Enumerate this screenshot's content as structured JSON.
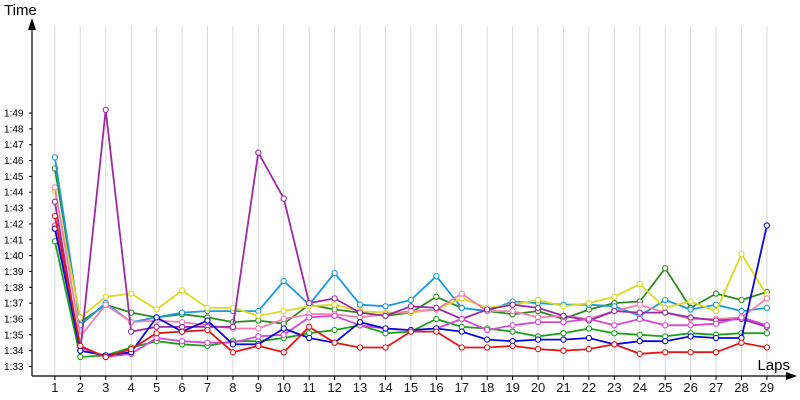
{
  "chart_data": {
    "type": "line",
    "title": "",
    "xlabel": "Laps",
    "ylabel": "Time",
    "x": [
      1,
      2,
      3,
      4,
      5,
      6,
      7,
      8,
      9,
      10,
      11,
      12,
      13,
      14,
      15,
      16,
      17,
      18,
      19,
      20,
      21,
      22,
      23,
      24,
      25,
      26,
      27,
      28,
      29
    ],
    "x_tick_labels": [
      "1",
      "2",
      "3",
      "4",
      "5",
      "6",
      "7",
      "8",
      "9",
      "10",
      "11",
      "12",
      "13",
      "14",
      "15",
      "16",
      "17",
      "18",
      "19",
      "20",
      "21",
      "22",
      "23",
      "24",
      "25",
      "26",
      "27",
      "28",
      "29"
    ],
    "xlim": [
      0.1,
      29.2
    ],
    "ylim": [
      92.4,
      115.0
    ],
    "y_ticks": [
      93,
      94,
      95,
      96,
      97,
      98,
      99,
      100,
      101,
      102,
      103,
      104,
      105,
      106,
      107,
      108,
      109
    ],
    "y_tick_labels": [
      "1:33",
      "1:34",
      "1:35",
      "1:36",
      "1:37",
      "1:38",
      "1:39",
      "1:40",
      "1:41",
      "1:42",
      "1:43",
      "1:44",
      "1:45",
      "1:46",
      "1:47",
      "1:48",
      "1:49"
    ],
    "grid": "vertical",
    "legend": "none",
    "axis_color": "#000000",
    "grid_color": "#d9d9d9",
    "series": [
      {
        "color": "#1aa31a",
        "values": [
          100.9,
          93.6,
          93.7,
          94.2,
          94.6,
          94.4,
          94.3,
          94.6,
          94.6,
          94.8,
          95.1,
          95.3,
          95.6,
          95.1,
          95.2,
          96.0,
          95.5,
          95.4,
          95.2,
          94.9,
          95.1,
          95.4,
          95.1,
          95.0,
          94.9,
          95.1,
          95.0,
          95.1,
          95.1
        ]
      },
      {
        "color": "#2e8b22",
        "values": [
          105.5,
          95.8,
          96.9,
          96.4,
          96.1,
          96.3,
          96.1,
          95.8,
          95.9,
          95.7,
          96.9,
          96.6,
          96.4,
          96.2,
          96.4,
          97.4,
          96.7,
          96.5,
          96.3,
          96.5,
          96.0,
          96.6,
          97.0,
          97.1,
          99.2,
          96.7,
          97.6,
          97.2,
          97.7
        ]
      },
      {
        "color": "#1a9be0",
        "values": [
          106.2,
          95.6,
          97.0,
          95.8,
          96.1,
          96.4,
          96.5,
          96.5,
          96.5,
          98.4,
          96.9,
          98.9,
          96.9,
          96.8,
          97.2,
          98.7,
          96.7,
          96.5,
          97.1,
          97.0,
          96.9,
          96.9,
          96.8,
          96.2,
          97.2,
          96.6,
          96.9,
          96.5,
          96.7
        ]
      },
      {
        "color": "#dada20",
        "values": [
          104.1,
          96.1,
          97.4,
          97.6,
          96.6,
          97.8,
          96.7,
          96.7,
          96.2,
          96.5,
          96.8,
          96.9,
          96.5,
          96.4,
          96.4,
          96.6,
          97.3,
          96.7,
          96.9,
          97.2,
          96.8,
          97.0,
          97.4,
          98.2,
          96.7,
          97.1,
          96.5,
          100.1,
          97.5
        ]
      },
      {
        "color": "#f080b0",
        "values": [
          104.3,
          94.9,
          96.9,
          95.8,
          95.9,
          95.8,
          95.6,
          95.4,
          95.4,
          96.0,
          96.3,
          96.3,
          96.1,
          96.3,
          96.5,
          96.6,
          97.6,
          96.5,
          96.5,
          96.1,
          96.2,
          96.0,
          96.5,
          96.9,
          96.4,
          96.0,
          96.0,
          96.1,
          97.3
        ]
      },
      {
        "color": "#9a2ea0",
        "values": [
          103.4,
          94.0,
          109.2,
          95.2,
          95.5,
          95.5,
          95.5,
          95.5,
          106.5,
          103.6,
          97.0,
          97.3,
          96.4,
          96.2,
          96.8,
          96.7,
          96.0,
          96.6,
          96.9,
          96.7,
          96.2,
          95.9,
          96.5,
          96.4,
          96.4,
          96.1,
          95.9,
          96.0,
          95.5
        ]
      },
      {
        "color": "#d448d4",
        "values": [
          101.9,
          94.2,
          93.6,
          93.8,
          94.8,
          94.6,
          94.5,
          94.5,
          94.9,
          95.0,
          96.1,
          96.2,
          95.6,
          95.4,
          95.3,
          95.4,
          96.0,
          95.3,
          95.6,
          95.8,
          95.8,
          96.0,
          95.6,
          96.0,
          95.6,
          95.6,
          95.7,
          96.1,
          95.6
        ]
      },
      {
        "color": "#0a0ad8",
        "values": [
          101.7,
          94.0,
          93.7,
          93.9,
          96.1,
          95.2,
          95.9,
          94.4,
          94.4,
          95.4,
          94.8,
          94.5,
          95.8,
          95.4,
          95.3,
          95.4,
          95.2,
          94.7,
          94.6,
          94.7,
          94.7,
          94.8,
          94.4,
          94.6,
          94.6,
          94.9,
          94.8,
          94.8,
          101.9
        ]
      },
      {
        "color": "#e01818",
        "values": [
          102.5,
          94.3,
          93.6,
          94.1,
          95.1,
          95.2,
          95.3,
          93.9,
          94.3,
          93.9,
          95.5,
          94.5,
          94.2,
          94.2,
          95.2,
          95.2,
          94.2,
          94.2,
          94.3,
          94.1,
          94.0,
          94.1,
          94.4,
          93.8,
          93.9,
          93.9,
          93.9,
          94.5,
          94.2
        ]
      }
    ]
  }
}
